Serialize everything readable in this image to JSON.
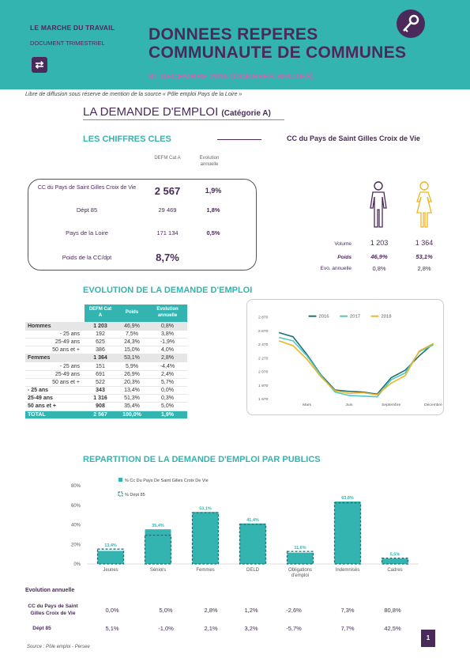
{
  "header": {
    "tag": "LE MARCHE DU TRAVAIL",
    "doc_type": "DOCUMENT TRIMESTRIEL",
    "title_line1": "DONNEES REPERES",
    "title_line2": "COMMUNAUTE DE COMMUNES",
    "date": "31 DECEMBRE 2018 (DONNEES BRUTES)",
    "accent": "#34b4b0",
    "brand": "#4a2a5a"
  },
  "diffusion": "Libre de diffusion sous réserve de mention de la source « Pôle emploi Pays de la Loire »",
  "main_title": "LA DEMANDE D'EMPLOI",
  "main_title_cat": "(Catégorie A)",
  "key_figures": {
    "title": "LES CHIFFRES CLES",
    "territory": "CC du Pays de Saint Gilles Croix de Vie",
    "col1": "DEFM Cat A",
    "col2": "Evolution annuelle",
    "rows": [
      {
        "label": "CC du Pays de Saint Gilles Croix de Vie",
        "v1": "2 567",
        "v2": "1,9%"
      },
      {
        "label": "Dépt 85",
        "v1": "29 469",
        "v2": "1,8%"
      },
      {
        "label": "Pays de la Loire",
        "v1": "171 134",
        "v2": "0,5%"
      },
      {
        "label": "Poids de la CC/dpt",
        "v1": "8,7%",
        "v2": ""
      }
    ],
    "gender": {
      "labels": [
        "Volume",
        "Poids",
        "Evo. annuelle"
      ],
      "male": [
        "1 203",
        "46,9%",
        "0,8%"
      ],
      "female": [
        "1 364",
        "53,1%",
        "2,8%"
      ]
    }
  },
  "evolution": {
    "title": "EVOLUTION DE LA DEMANDE D'EMPLOI",
    "headers": [
      "DEFM Cat A",
      "Poids",
      "Evolution annuelle"
    ],
    "rows": [
      {
        "kind": "grp",
        "label": "Hommes",
        "v1": "1 203",
        "v2": "46,9%",
        "v3": "0,8%"
      },
      {
        "kind": "sub",
        "label": "- 25 ans",
        "v1": "192",
        "v2": "7,5%",
        "v3": "3,8%"
      },
      {
        "kind": "sub",
        "label": "25-49 ans",
        "v1": "625",
        "v2": "24,3%",
        "v3": "-1,9%"
      },
      {
        "kind": "sub",
        "label": "50 ans et +",
        "v1": "386",
        "v2": "15,0%",
        "v3": "4,0%"
      },
      {
        "kind": "grp",
        "label": "Femmes",
        "v1": "1 364",
        "v2": "53,1%",
        "v3": "2,8%"
      },
      {
        "kind": "sub",
        "label": "- 25 ans",
        "v1": "151",
        "v2": "5,9%",
        "v3": "-4,4%"
      },
      {
        "kind": "sub",
        "label": "25-49 ans",
        "v1": "691",
        "v2": "26,9%",
        "v3": "2,4%"
      },
      {
        "kind": "sub",
        "label": "50 ans et +",
        "v1": "522",
        "v2": "20,3%",
        "v3": "5,7%"
      },
      {
        "kind": "grp",
        "label": "- 25 ans",
        "v1": "343",
        "v2": "13,4%",
        "v3": "0,0%"
      },
      {
        "kind": "grp",
        "label": "25-49 ans",
        "v1": "1 316",
        "v2": "51,3%",
        "v3": "0,3%"
      },
      {
        "kind": "grp",
        "label": "50 ans et +",
        "v1": "908",
        "v2": "35,4%",
        "v3": "5,0%"
      },
      {
        "kind": "total",
        "label": "TOTAL",
        "v1": "2 567",
        "v2": "100,0%",
        "v3": "1,9%"
      }
    ]
  },
  "chart_data": [
    {
      "type": "line",
      "x": [
        "Jan",
        "Fév",
        "Mars",
        "Avr",
        "Mai",
        "Juin",
        "Juil",
        "Août",
        "Septembre",
        "Oct",
        "Nov",
        "Décembre"
      ],
      "x_tick_labels": [
        "Mars",
        "Juin",
        "Septembre",
        "Décembre"
      ],
      "series": [
        {
          "name": "2016",
          "color": "#1f6f78",
          "values": [
            2640,
            2580,
            2320,
            2020,
            1800,
            1780,
            1770,
            1740,
            1980,
            2090,
            2300,
            2480
          ]
        },
        {
          "name": "2017",
          "color": "#4dc9c0",
          "values": [
            2570,
            2520,
            2300,
            2010,
            1770,
            1720,
            1710,
            1700,
            1950,
            2050,
            2360,
            2460
          ]
        },
        {
          "name": "2018",
          "color": "#f0b323",
          "values": [
            2520,
            2450,
            2250,
            1990,
            1790,
            1750,
            1760,
            1730,
            1900,
            2010,
            2370,
            2480
          ]
        }
      ],
      "ylim": [
        1670,
        2870
      ],
      "y_ticks": [
        "2 870",
        "2 670",
        "2 470",
        "2 270",
        "2 070",
        "1 870",
        "1 670"
      ],
      "legend": "top"
    },
    {
      "type": "bar",
      "title": "REPARTITION DE LA DEMANDE D'EMPLOI PAR PUBLICS",
      "categories": [
        "Jeunes",
        "Séniors",
        "Femmes",
        "DELD",
        "Obligations d'emploi",
        "Indemnisés",
        "Cadres"
      ],
      "series": [
        {
          "name": "% Cc Du Pays De Saint Gilles Croix De Vie",
          "color": "#34b4b0",
          "values": [
            13.4,
            35.4,
            53.1,
            41.4,
            11.6,
            63.8,
            5.5
          ]
        },
        {
          "name": "% Dépt 85",
          "color": "#1f6f78",
          "values": [
            15.2,
            29.4,
            52.4,
            40.6,
            12.8,
            62.5,
            5.9
          ]
        }
      ],
      "data_labels": [
        "13,4%",
        "35,4%",
        "53,1%",
        "41,4%",
        "11,6%",
        "63,8%",
        "5,5%"
      ],
      "y_ticks": [
        "80%",
        "60%",
        "40%",
        "20%",
        "0%"
      ],
      "ylim": [
        0,
        80
      ],
      "legend": "top-left"
    }
  ],
  "annual": {
    "title": "Evolution annuelle",
    "rows": [
      {
        "label": "CC du Pays de Saint Gilles Croix de Vie",
        "values": [
          "0,0%",
          "5,0%",
          "2,8%",
          "1,2%",
          "-2,6%",
          "7,3%",
          "80,8%"
        ]
      },
      {
        "label": "Dépt 85",
        "values": [
          "5,1%",
          "-1,0%",
          "2,1%",
          "3,2%",
          "-5,7%",
          "7,7%",
          "42,5%"
        ]
      }
    ]
  },
  "source": "Source : Pôle emploi - Persee",
  "page_number": "1"
}
